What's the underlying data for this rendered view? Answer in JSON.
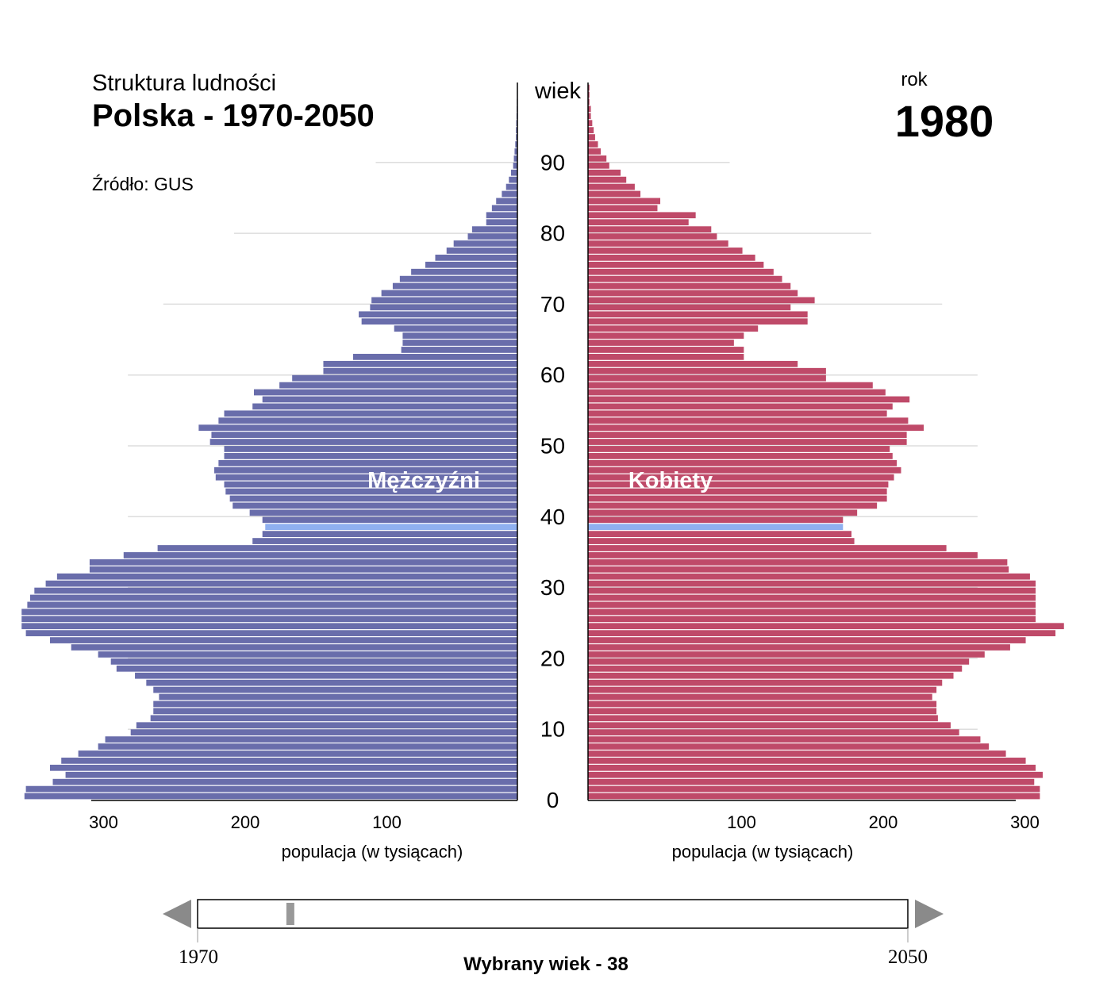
{
  "header": {
    "subtitle": "Struktura ludności",
    "title": "Polska - 1970-2050",
    "source": "Źródło: GUS",
    "year_label": "rok",
    "year": "1980"
  },
  "chart_data": {
    "type": "bar",
    "orientation": "horizontal-pyramid",
    "yaxis_label": "wiek",
    "age_ticks": [
      "0",
      "10",
      "20",
      "30",
      "40",
      "50",
      "60",
      "70",
      "80",
      "90"
    ],
    "ages_range": [
      0,
      100
    ],
    "highlighted_age": 38,
    "grid": true,
    "colors": {
      "male": "#696dab",
      "female": "#bf4a69",
      "highlight": "#8fb0f0"
    },
    "left": {
      "name": "Mężczyźni",
      "xlabel": "populacja (w tysiącach)",
      "ticks": [
        "300",
        "200",
        "100"
      ],
      "values": [
        348,
        347,
        328,
        319,
        330,
        322,
        310,
        296,
        291,
        273,
        269,
        259,
        257,
        257,
        253,
        257,
        262,
        270,
        283,
        287,
        296,
        315,
        330,
        347,
        350,
        350,
        350,
        346,
        344,
        341,
        333,
        325,
        302,
        302,
        278,
        254,
        187,
        180,
        178,
        180,
        189,
        201,
        203,
        206,
        207,
        213,
        214,
        211,
        207,
        207,
        217,
        216,
        225,
        211,
        207,
        187,
        180,
        186,
        168,
        159,
        137,
        137,
        116,
        82,
        81,
        81,
        87,
        110,
        112,
        104,
        103,
        96,
        88,
        83,
        75,
        65,
        58,
        50,
        45,
        35,
        32,
        22,
        22,
        18,
        15,
        11,
        8,
        6,
        4.5,
        3,
        2.5,
        2,
        1.5,
        1,
        1,
        0.8,
        0.6,
        0.5,
        0.4,
        0.3,
        0.2
      ]
    },
    "right": {
      "name": "Kobiety",
      "xlabel": "populacja (w tysiącach)",
      "ticks": [
        "100",
        "200",
        "300"
      ],
      "values": [
        319,
        319,
        315,
        321,
        316,
        309,
        295,
        283,
        277,
        262,
        256,
        247,
        246,
        246,
        243,
        246,
        250,
        258,
        264,
        269,
        280,
        298,
        309,
        330,
        336,
        316,
        316,
        316,
        316,
        316,
        316,
        312,
        297,
        296,
        275,
        253,
        188,
        186,
        180,
        180,
        190,
        204,
        211,
        211,
        212,
        216,
        221,
        218,
        215,
        213,
        225,
        225,
        237,
        226,
        211,
        215,
        227,
        210,
        201,
        168,
        168,
        148,
        110,
        110,
        103,
        110,
        120,
        155,
        155,
        143,
        160,
        148,
        143,
        137,
        131,
        124,
        118,
        109,
        99,
        91,
        87,
        71,
        76,
        49,
        51,
        37,
        33,
        27,
        23,
        15,
        13,
        9,
        7,
        5,
        4,
        3,
        2,
        2,
        1,
        1,
        1
      ]
    }
  },
  "slider": {
    "start_label": "1970",
    "end_label": "2050",
    "start": 1970,
    "end": 2050,
    "value": 1980,
    "caption": "Wybrany wiek - 38"
  }
}
